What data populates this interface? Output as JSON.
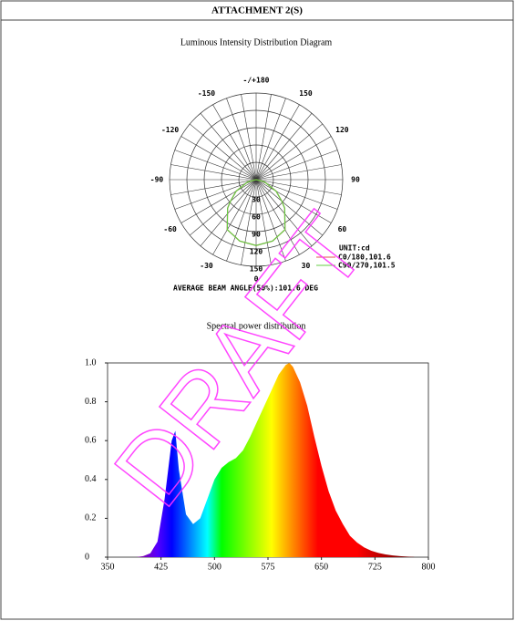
{
  "header": {
    "title": "ATTACHMENT 2(S)"
  },
  "watermark": "DRAFT",
  "chart_data": [
    {
      "type": "polar",
      "title": "Luminous Intensity Distribution Diagram",
      "rlim": [
        0,
        150
      ],
      "rticks": [
        30,
        60,
        90,
        120,
        150
      ],
      "angle_ticks": [
        {
          "value": 180,
          "label": "-/+180"
        },
        150,
        120,
        90,
        60,
        30,
        0,
        -30,
        -60,
        -90,
        -120,
        -150
      ],
      "unit_label": "UNIT:cd",
      "series": [
        {
          "name": "C0/180,101.6",
          "color": "#e05050",
          "angles": [
            -90,
            -75,
            -60,
            -50,
            -45,
            -30,
            -15,
            0,
            15,
            30,
            45,
            50,
            60,
            75,
            90
          ],
          "values": [
            0,
            15,
            40,
            58,
            70,
            100,
            110,
            114,
            110,
            100,
            70,
            58,
            40,
            15,
            0
          ]
        },
        {
          "name": "C90/270,101.5",
          "color": "#66cc44",
          "angles": [
            -90,
            -75,
            -60,
            -50,
            -45,
            -30,
            -15,
            0,
            15,
            30,
            45,
            50,
            60,
            75,
            90
          ],
          "values": [
            0,
            15,
            40,
            58,
            70,
            100,
            110,
            114,
            110,
            100,
            70,
            58,
            40,
            15,
            0
          ]
        }
      ],
      "footnote": "AVERAGE BEAM ANGLE(50%):101.6 DEG"
    },
    {
      "type": "area",
      "title": "Spectral power distribution",
      "x": [
        380,
        390,
        400,
        410,
        420,
        430,
        440,
        445,
        450,
        460,
        470,
        480,
        490,
        500,
        510,
        520,
        530,
        540,
        550,
        560,
        570,
        580,
        590,
        600,
        605,
        610,
        620,
        630,
        640,
        650,
        660,
        670,
        680,
        690,
        700,
        710,
        720,
        730,
        740,
        750,
        760,
        770,
        780
      ],
      "values": [
        0,
        0,
        0.005,
        0.02,
        0.08,
        0.3,
        0.6,
        0.65,
        0.45,
        0.22,
        0.17,
        0.2,
        0.3,
        0.4,
        0.46,
        0.49,
        0.51,
        0.55,
        0.62,
        0.7,
        0.78,
        0.86,
        0.94,
        0.99,
        1.0,
        0.98,
        0.9,
        0.78,
        0.62,
        0.47,
        0.34,
        0.24,
        0.17,
        0.11,
        0.075,
        0.05,
        0.033,
        0.022,
        0.014,
        0.009,
        0.005,
        0.003,
        0.001
      ],
      "xlim": [
        350,
        800
      ],
      "ylim": [
        0,
        1
      ],
      "xticks": [
        350,
        425,
        500,
        575,
        650,
        725,
        800
      ],
      "yticks": [
        0,
        0.2,
        0.4,
        0.6,
        0.8,
        {
          "value": 1,
          "label": "1.0"
        }
      ]
    }
  ]
}
